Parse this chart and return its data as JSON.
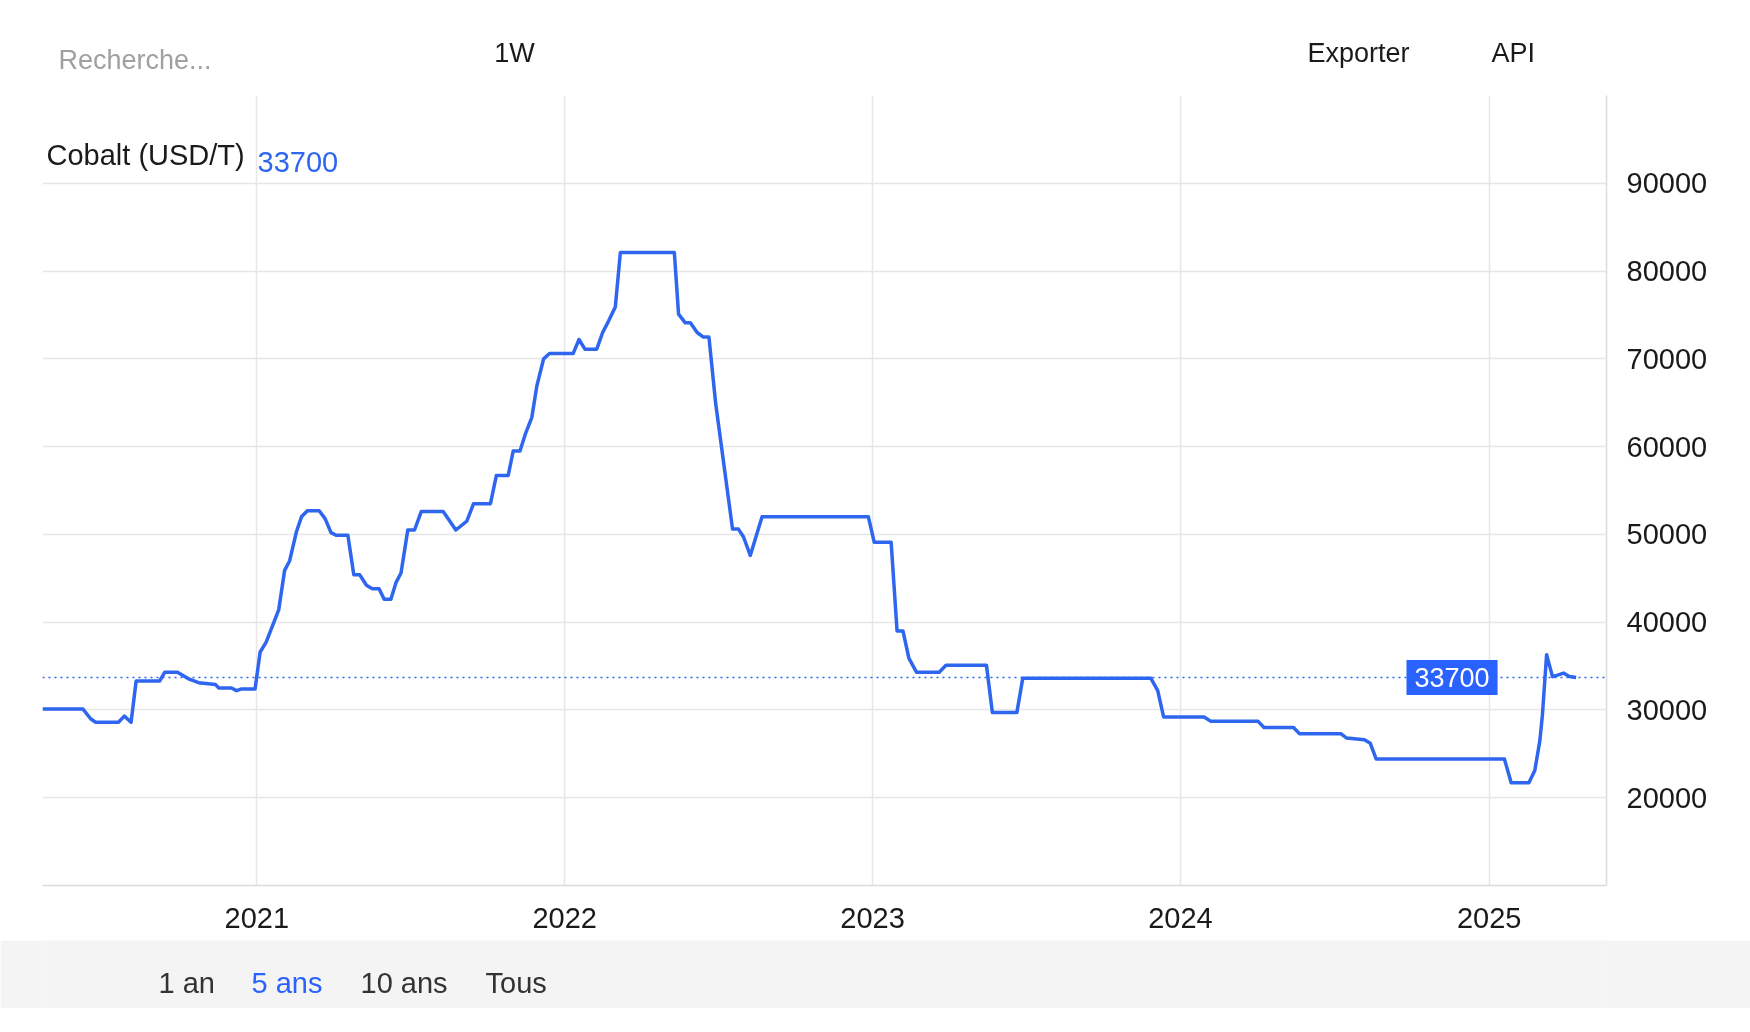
{
  "chart_data": {
    "type": "line",
    "title": "Cobalt (USD/T)",
    "subtitle": "33700",
    "annotations": [
      "Recherche...",
      "1W",
      "Exporter",
      "API",
      "1 an",
      "5 ans",
      "10 ans",
      "Tous"
    ],
    "x": [
      "2020-04-22",
      "2020-06-09",
      "2020-06-18",
      "2020-06-24",
      "2020-07-21",
      "2020-07-28",
      "2020-08-05",
      "2020-08-11",
      "2020-09-08",
      "2020-09-14",
      "2020-09-29",
      "2020-10-13",
      "2020-10-24",
      "2020-11-13",
      "2020-11-17",
      "2020-12-02",
      "2020-12-08",
      "2020-12-14",
      "2020-12-30",
      "2021-01-05",
      "2021-01-12",
      "2021-01-27",
      "2021-02-03",
      "2021-02-09",
      "2021-02-17",
      "2021-02-23",
      "2021-03-02",
      "2021-03-16",
      "2021-03-23",
      "2021-03-30",
      "2021-04-05",
      "2021-04-19",
      "2021-04-26",
      "2021-05-03",
      "2021-05-11",
      "2021-05-18",
      "2021-05-26",
      "2021-06-01",
      "2021-06-09",
      "2021-06-15",
      "2021-06-21",
      "2021-06-29",
      "2021-07-07",
      "2021-07-15",
      "2021-08-10",
      "2021-08-25",
      "2021-09-07",
      "2021-09-15",
      "2021-10-05",
      "2021-10-12",
      "2021-10-26",
      "2021-11-01",
      "2021-11-09",
      "2021-11-16",
      "2021-11-23",
      "2021-11-29",
      "2021-12-07",
      "2021-12-14",
      "2022-01-11",
      "2022-01-18",
      "2022-01-25",
      "2022-02-08",
      "2022-02-15",
      "2022-02-22",
      "2022-03-02",
      "2022-03-08",
      "2022-05-11",
      "2022-05-16",
      "2022-05-24",
      "2022-05-30",
      "2022-06-07",
      "2022-06-14",
      "2022-06-21",
      "2022-06-29",
      "2022-07-19",
      "2022-07-26",
      "2022-08-01",
      "2022-08-09",
      "2022-08-23",
      "2022-12-27",
      "2023-01-03",
      "2023-01-23",
      "2023-01-30",
      "2023-02-06",
      "2023-02-13",
      "2023-02-22",
      "2023-03-21",
      "2023-03-29",
      "2023-05-16",
      "2023-05-23",
      "2023-06-21",
      "2023-06-28",
      "2023-11-27",
      "2023-12-05",
      "2023-12-12",
      "2024-01-29",
      "2024-02-06",
      "2024-04-02",
      "2024-04-09",
      "2024-05-14",
      "2024-05-21",
      "2024-07-09",
      "2024-07-16",
      "2024-08-06",
      "2024-08-13",
      "2024-08-20",
      "2025-01-19",
      "2025-01-27",
      "2025-02-17",
      "2025-02-24",
      "2025-03-02",
      "2025-03-05",
      "2025-03-10",
      "2025-03-17",
      "2025-03-24",
      "2025-03-30",
      "2025-04-06",
      "2025-04-14"
    ],
    "values": [
      30100,
      30100,
      29000,
      28600,
      28600,
      29300,
      28600,
      33300,
      33300,
      34300,
      34300,
      33500,
      33100,
      32900,
      32500,
      32500,
      32200,
      32400,
      32400,
      36600,
      37700,
      41400,
      45900,
      47000,
      50300,
      52000,
      52700,
      52700,
      51800,
      50200,
      49900,
      49900,
      45400,
      45400,
      44200,
      43800,
      43800,
      42600,
      42600,
      44500,
      45600,
      50500,
      50500,
      52600,
      52600,
      50500,
      51500,
      53500,
      53500,
      56700,
      56700,
      59500,
      59500,
      61600,
      63300,
      66900,
      70000,
      70600,
      70600,
      72200,
      71100,
      71100,
      73000,
      74300,
      75900,
      82100,
      82100,
      75100,
      74100,
      74100,
      73000,
      72500,
      72500,
      64900,
      50600,
      50600,
      49700,
      47600,
      52000,
      52000,
      49100,
      49100,
      39000,
      39000,
      35900,
      34300,
      34300,
      35100,
      35100,
      29700,
      29700,
      33600,
      33600,
      32200,
      29200,
      29200,
      28700,
      28700,
      28000,
      28000,
      27300,
      27300,
      26800,
      26600,
      26200,
      24400,
      24400,
      21700,
      21700,
      23100,
      26500,
      29400,
      36300,
      33800,
      34000,
      34200,
      33800,
      33700
    ],
    "color": "#2e66f0",
    "line_style": "solid",
    "xlim": [
      "2020-04-22",
      "2025-05-20"
    ],
    "xticks": [
      "2021",
      "2022",
      "2023",
      "2024",
      "2025"
    ],
    "ylim": [
      10000,
      100000
    ],
    "yticks": [
      20000,
      30000,
      40000,
      50000,
      60000,
      70000,
      80000,
      90000
    ],
    "ref_lines": [
      {
        "axis": "y",
        "value": 33700,
        "label": "33700",
        "color": "#2962ff",
        "line_style": "dotted"
      }
    ],
    "grid": true
  }
}
